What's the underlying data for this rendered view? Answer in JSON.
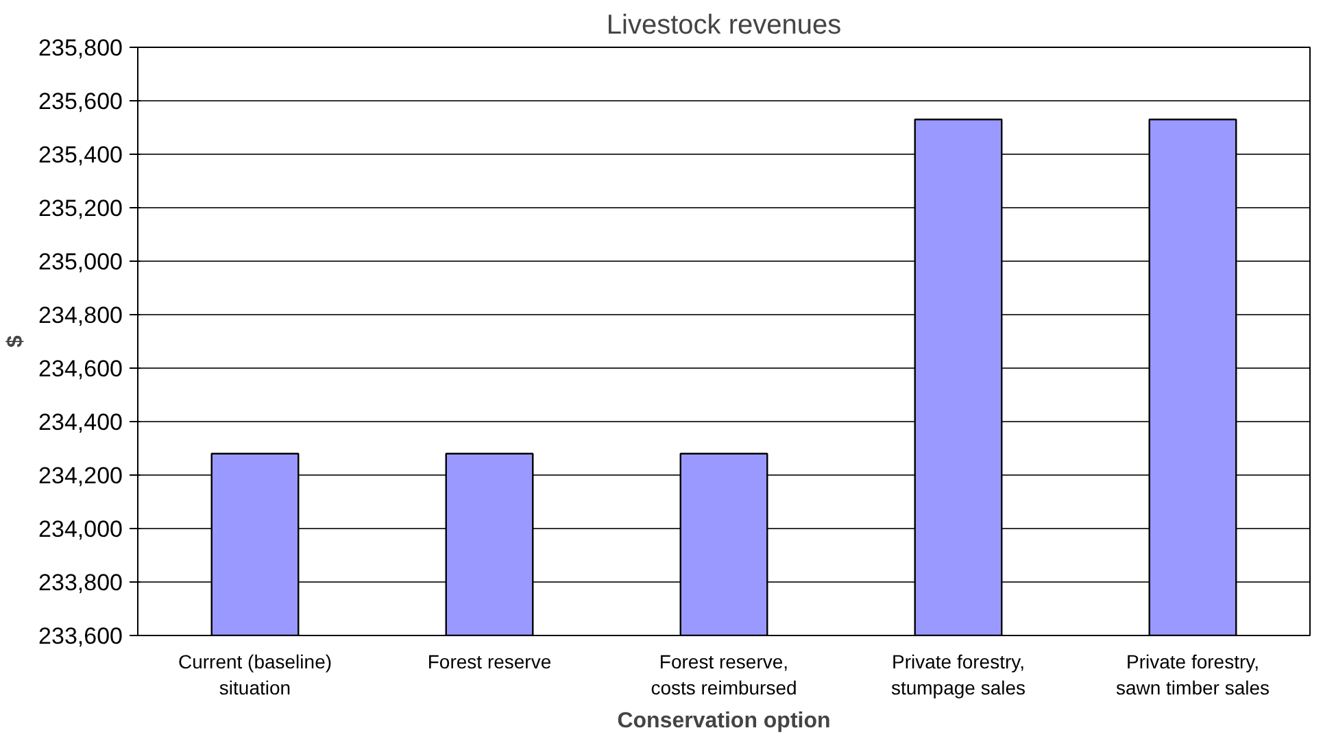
{
  "chart_data": {
    "type": "bar",
    "title": "Livestock revenues",
    "xlabel": "Conservation option",
    "ylabel": "$",
    "categories": [
      "Current (baseline) situation",
      "Forest reserve",
      "Forest reserve, costs reimbursed",
      "Private forestry, stumpage sales",
      "Private forestry, sawn timber sales"
    ],
    "values": [
      234280,
      234280,
      234280,
      235530,
      235530
    ],
    "color": "#9999ff",
    "ylim": [
      233600,
      235800
    ],
    "yticks": [
      {
        "value": 233600,
        "label": "233,600"
      },
      {
        "value": 233800,
        "label": "233,800"
      },
      {
        "value": 234000,
        "label": "234,000"
      },
      {
        "value": 234200,
        "label": "234,200"
      },
      {
        "value": 234400,
        "label": "234,400"
      },
      {
        "value": 234600,
        "label": "234,600"
      },
      {
        "value": 234800,
        "label": "234,800"
      },
      {
        "value": 235000,
        "label": "235,000"
      },
      {
        "value": 235200,
        "label": "235,200"
      },
      {
        "value": 235400,
        "label": "235,400"
      },
      {
        "value": 235600,
        "label": "235,600"
      },
      {
        "value": 235800,
        "label": "235,800"
      }
    ],
    "grid": "y"
  }
}
